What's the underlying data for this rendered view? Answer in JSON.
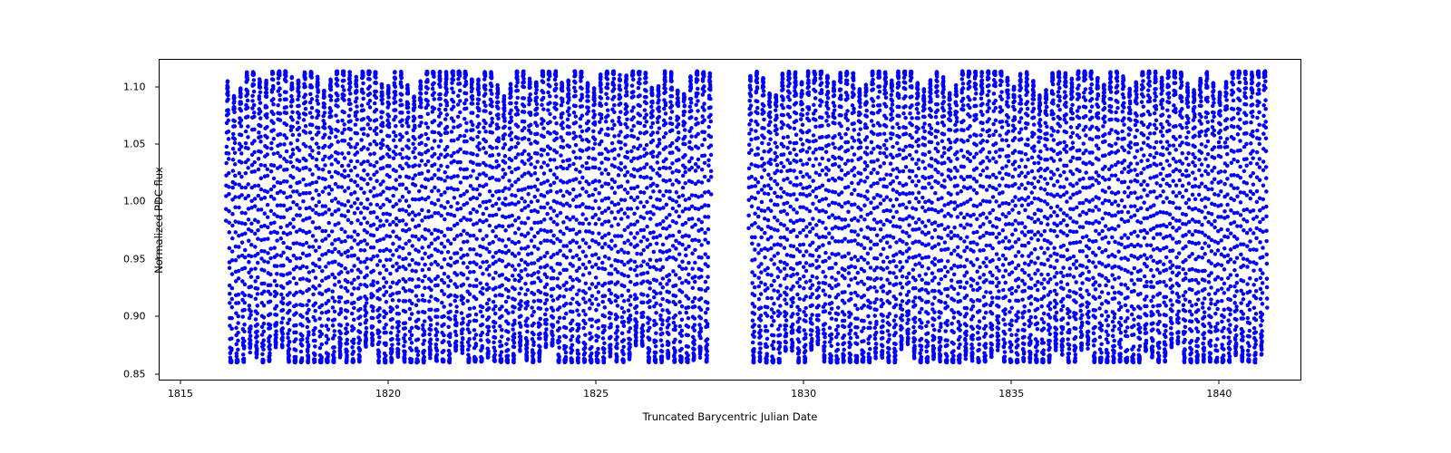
{
  "chart": {
    "type": "scatter",
    "xlabel": "Truncated Barycentric Julian Date",
    "ylabel": "Normalized PDC flux",
    "xlim": [
      1814.5,
      1842.0
    ],
    "ylim": [
      0.845,
      1.125
    ],
    "xticks": [
      1815,
      1820,
      1825,
      1830,
      1835,
      1840
    ],
    "yticks": [
      0.85,
      0.9,
      0.95,
      1.0,
      1.05,
      1.1
    ],
    "ytick_labels": [
      "0.85",
      "0.90",
      "0.95",
      "1.00",
      "1.05",
      "1.10"
    ],
    "marker_color": "#0000ff",
    "marker_size": 4.5,
    "background_color": "#ffffff",
    "border_color": "#000000",
    "label_fontsize": 11.5,
    "tick_fontsize": 11,
    "data_generation": {
      "segment1": {
        "x_start": 1816.1,
        "x_end": 1827.8
      },
      "segment2": {
        "x_start": 1828.7,
        "x_end": 1841.2
      },
      "oscillation_period": 0.155,
      "sampling_interval": 0.0021,
      "amplitude_low": 0.86,
      "amplitude_high": 1.115,
      "num_points_per_segment": 5500
    }
  }
}
